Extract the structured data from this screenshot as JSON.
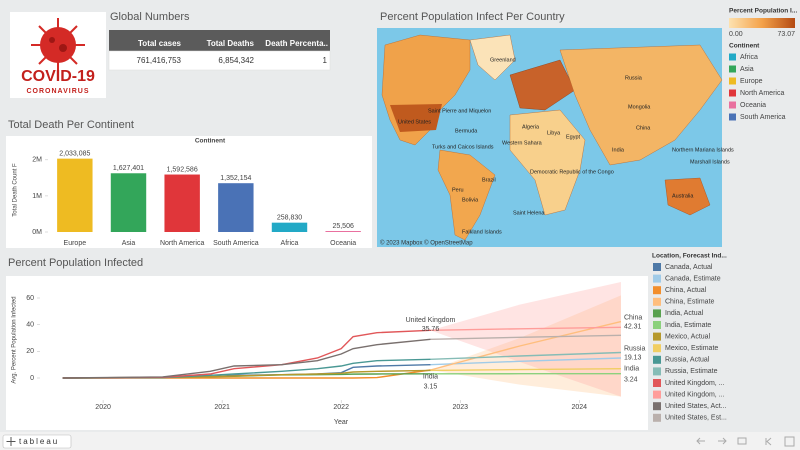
{
  "logo": {
    "title": "COVID-19",
    "subtitle": "CORONAVIRUS"
  },
  "global_numbers": {
    "title": "Global Numbers",
    "columns": [
      "Total cases",
      "Total Deaths",
      "Death Percenta.."
    ],
    "row": [
      "761,416,753",
      "6,854,342",
      "1"
    ]
  },
  "map": {
    "title": "Percent Population Infect Per Country",
    "attribution": "© 2023 Mapbox © OpenStreetMap",
    "labels": [
      "Greenland",
      "Russia",
      "United States",
      "Saint Pierre and Miquelon",
      "Bermuda",
      "Turks and Caicos Islands",
      "Algeria",
      "Libya",
      "Egypt",
      "Western Sahara",
      "Mongolia",
      "China",
      "India",
      "Brazil",
      "Peru",
      "Bolivia",
      "Democratic Republic of the Congo",
      "Saint Helena",
      "Australia",
      "Northern Mariana Islands",
      "Marshall Islands",
      "Falkland Islands"
    ],
    "color_legend": {
      "title": "Percent Population I...",
      "min": "0.00",
      "max": "73.07"
    }
  },
  "chart_data": [
    {
      "type": "bar",
      "title": "Total Death Per Continent",
      "header": "Continent",
      "y_label": "Total Death Count F",
      "categories": [
        "Europe",
        "Asia",
        "North America",
        "South America",
        "Africa",
        "Oceania"
      ],
      "values": [
        2033085,
        1627401,
        1592586,
        1352154,
        258830,
        25506
      ],
      "value_labels": [
        "2,033,085",
        "1,627,401",
        "1,592,586",
        "1,352,154",
        "258,830",
        "25,506"
      ],
      "colors": [
        "#eebb22",
        "#33a65a",
        "#e0363a",
        "#4a72b6",
        "#22a9c6",
        "#e9709f"
      ],
      "ylim": [
        0,
        2300000
      ],
      "yticks": [
        {
          "value": 0,
          "label": "0M"
        },
        {
          "value": 1000000,
          "label": "1M"
        },
        {
          "value": 2000000,
          "label": "2M"
        }
      ],
      "legend": {
        "title": "Continent",
        "items": [
          {
            "name": "Africa",
            "color": "#22a9c6"
          },
          {
            "name": "Asia",
            "color": "#33a65a"
          },
          {
            "name": "Europe",
            "color": "#eebb22"
          },
          {
            "name": "North America",
            "color": "#e0363a"
          },
          {
            "name": "Oceania",
            "color": "#e9709f"
          },
          {
            "name": "South America",
            "color": "#4a72b6"
          }
        ]
      }
    },
    {
      "type": "line",
      "title": "Percent Population Infected",
      "x_label": "Year",
      "y_label": "Avg. Percent Population Infected",
      "legend_title": "Location, Forecast Ind...",
      "xlim": [
        2019.47,
        2024.51
      ],
      "xticks": [
        2020,
        2021,
        2022,
        2023,
        2024
      ],
      "ylim": [
        -16.5,
        75.75
      ],
      "yticks": [
        0,
        20,
        40,
        60
      ],
      "series": [
        {
          "name": "Canada, Actual",
          "color": "#4e79a7",
          "x": [
            2019.66,
            2020.5,
            2020.9,
            2021.1,
            2021.5,
            2021.8,
            2022.0,
            2022.1,
            2022.3,
            2022.75
          ],
          "values": [
            0,
            0.3,
            1,
            2,
            2.5,
            3,
            4,
            8,
            9,
            10
          ]
        },
        {
          "name": "Canada, Estimate",
          "color": "#a0cbe8",
          "x": [
            2022.75,
            2023.5,
            2024.35
          ],
          "values": [
            10,
            12.5,
            15
          ]
        },
        {
          "name": "China, Actual",
          "color": "#f28e2b",
          "x": [
            2019.66,
            2020.5,
            2020.9,
            2021.1,
            2021.5,
            2021.8,
            2022.0,
            2022.1,
            2022.3,
            2022.75
          ],
          "values": [
            0,
            0,
            0,
            0,
            0,
            0,
            0,
            0,
            0.3,
            6
          ]
        },
        {
          "name": "China, Estimate",
          "color": "#ffbe7d",
          "x": [
            2022.75,
            2023.5,
            2024.35
          ],
          "values": [
            6,
            24,
            42.31
          ],
          "lower": [
            6,
            -5,
            -14
          ],
          "upper": [
            6,
            30,
            62
          ]
        },
        {
          "name": "India, Actual",
          "color": "#59a14f",
          "x": [
            2019.66,
            2020.5,
            2020.9,
            2021.1,
            2021.5,
            2021.8,
            2022.0,
            2022.1,
            2022.3,
            2022.75
          ],
          "values": [
            0,
            0.5,
            1,
            1.3,
            2.3,
            2.5,
            2.7,
            2.9,
            3.0,
            3.15
          ]
        },
        {
          "name": "India, Estimate",
          "color": "#8cd17d",
          "x": [
            2022.75,
            2023.5,
            2024.35
          ],
          "values": [
            3.15,
            3.2,
            3.24
          ]
        },
        {
          "name": "Mexico, Actual",
          "color": "#b6992d",
          "x": [
            2019.66,
            2020.5,
            2020.9,
            2021.1,
            2021.5,
            2021.8,
            2022.0,
            2022.1,
            2022.3,
            2022.75
          ],
          "values": [
            0,
            0.3,
            1,
            1.5,
            2.5,
            3,
            3.5,
            4.5,
            5,
            5.7
          ]
        },
        {
          "name": "Mexico, Estimate",
          "color": "#f1ce63",
          "x": [
            2022.75,
            2023.5,
            2024.35
          ],
          "values": [
            5.7,
            6.3,
            7
          ]
        },
        {
          "name": "Russia, Actual",
          "color": "#499894",
          "x": [
            2019.66,
            2020.5,
            2020.9,
            2021.1,
            2021.5,
            2021.8,
            2022.0,
            2022.1,
            2022.3,
            2022.75
          ],
          "values": [
            0,
            0.2,
            2,
            3,
            5,
            7,
            9,
            11,
            13,
            14
          ]
        },
        {
          "name": "Russia, Estimate",
          "color": "#86bcb6",
          "x": [
            2022.75,
            2023.5,
            2024.35
          ],
          "values": [
            14,
            16.5,
            19.13
          ]
        },
        {
          "name": "United Kingdom, ...",
          "color": "#e15759",
          "x": [
            2019.66,
            2020.5,
            2020.9,
            2021.1,
            2021.5,
            2021.8,
            2022.0,
            2022.1,
            2022.3,
            2022.75
          ],
          "values": [
            0,
            0.5,
            3,
            7,
            10,
            15,
            22,
            31,
            34,
            35.76
          ]
        },
        {
          "name": "United Kingdom, ...",
          "color": "#ff9d9a",
          "x": [
            2022.75,
            2023.5,
            2024.35
          ],
          "values": [
            35.76,
            36.9,
            38
          ],
          "lower": [
            35.76,
            12,
            -14
          ],
          "upper": [
            35.76,
            55,
            72
          ]
        },
        {
          "name": "United States, Act...",
          "color": "#79706e",
          "x": [
            2019.66,
            2020.5,
            2020.9,
            2021.1,
            2021.5,
            2021.8,
            2022.0,
            2022.1,
            2022.3,
            2022.75
          ],
          "values": [
            0,
            0.8,
            5,
            9,
            10,
            13,
            18,
            22,
            25,
            29
          ]
        },
        {
          "name": "United States, Est...",
          "color": "#bab0ac",
          "x": [
            2022.75,
            2023.5,
            2024.35
          ],
          "values": [
            29,
            30.5,
            32
          ]
        }
      ],
      "annotations": [
        {
          "label": "United Kingdom",
          "x": 2022.75,
          "value": 35.76
        },
        {
          "label": "India",
          "x": 2022.75,
          "value": 3.15
        },
        {
          "label": "China",
          "x": 2024.35,
          "value": 42.31
        },
        {
          "label": "Russia",
          "x": 2024.35,
          "value": 19.13
        },
        {
          "label": "India",
          "x": 2024.35,
          "value": 3.24
        }
      ]
    }
  ],
  "footer": {
    "brand": "tableau"
  }
}
